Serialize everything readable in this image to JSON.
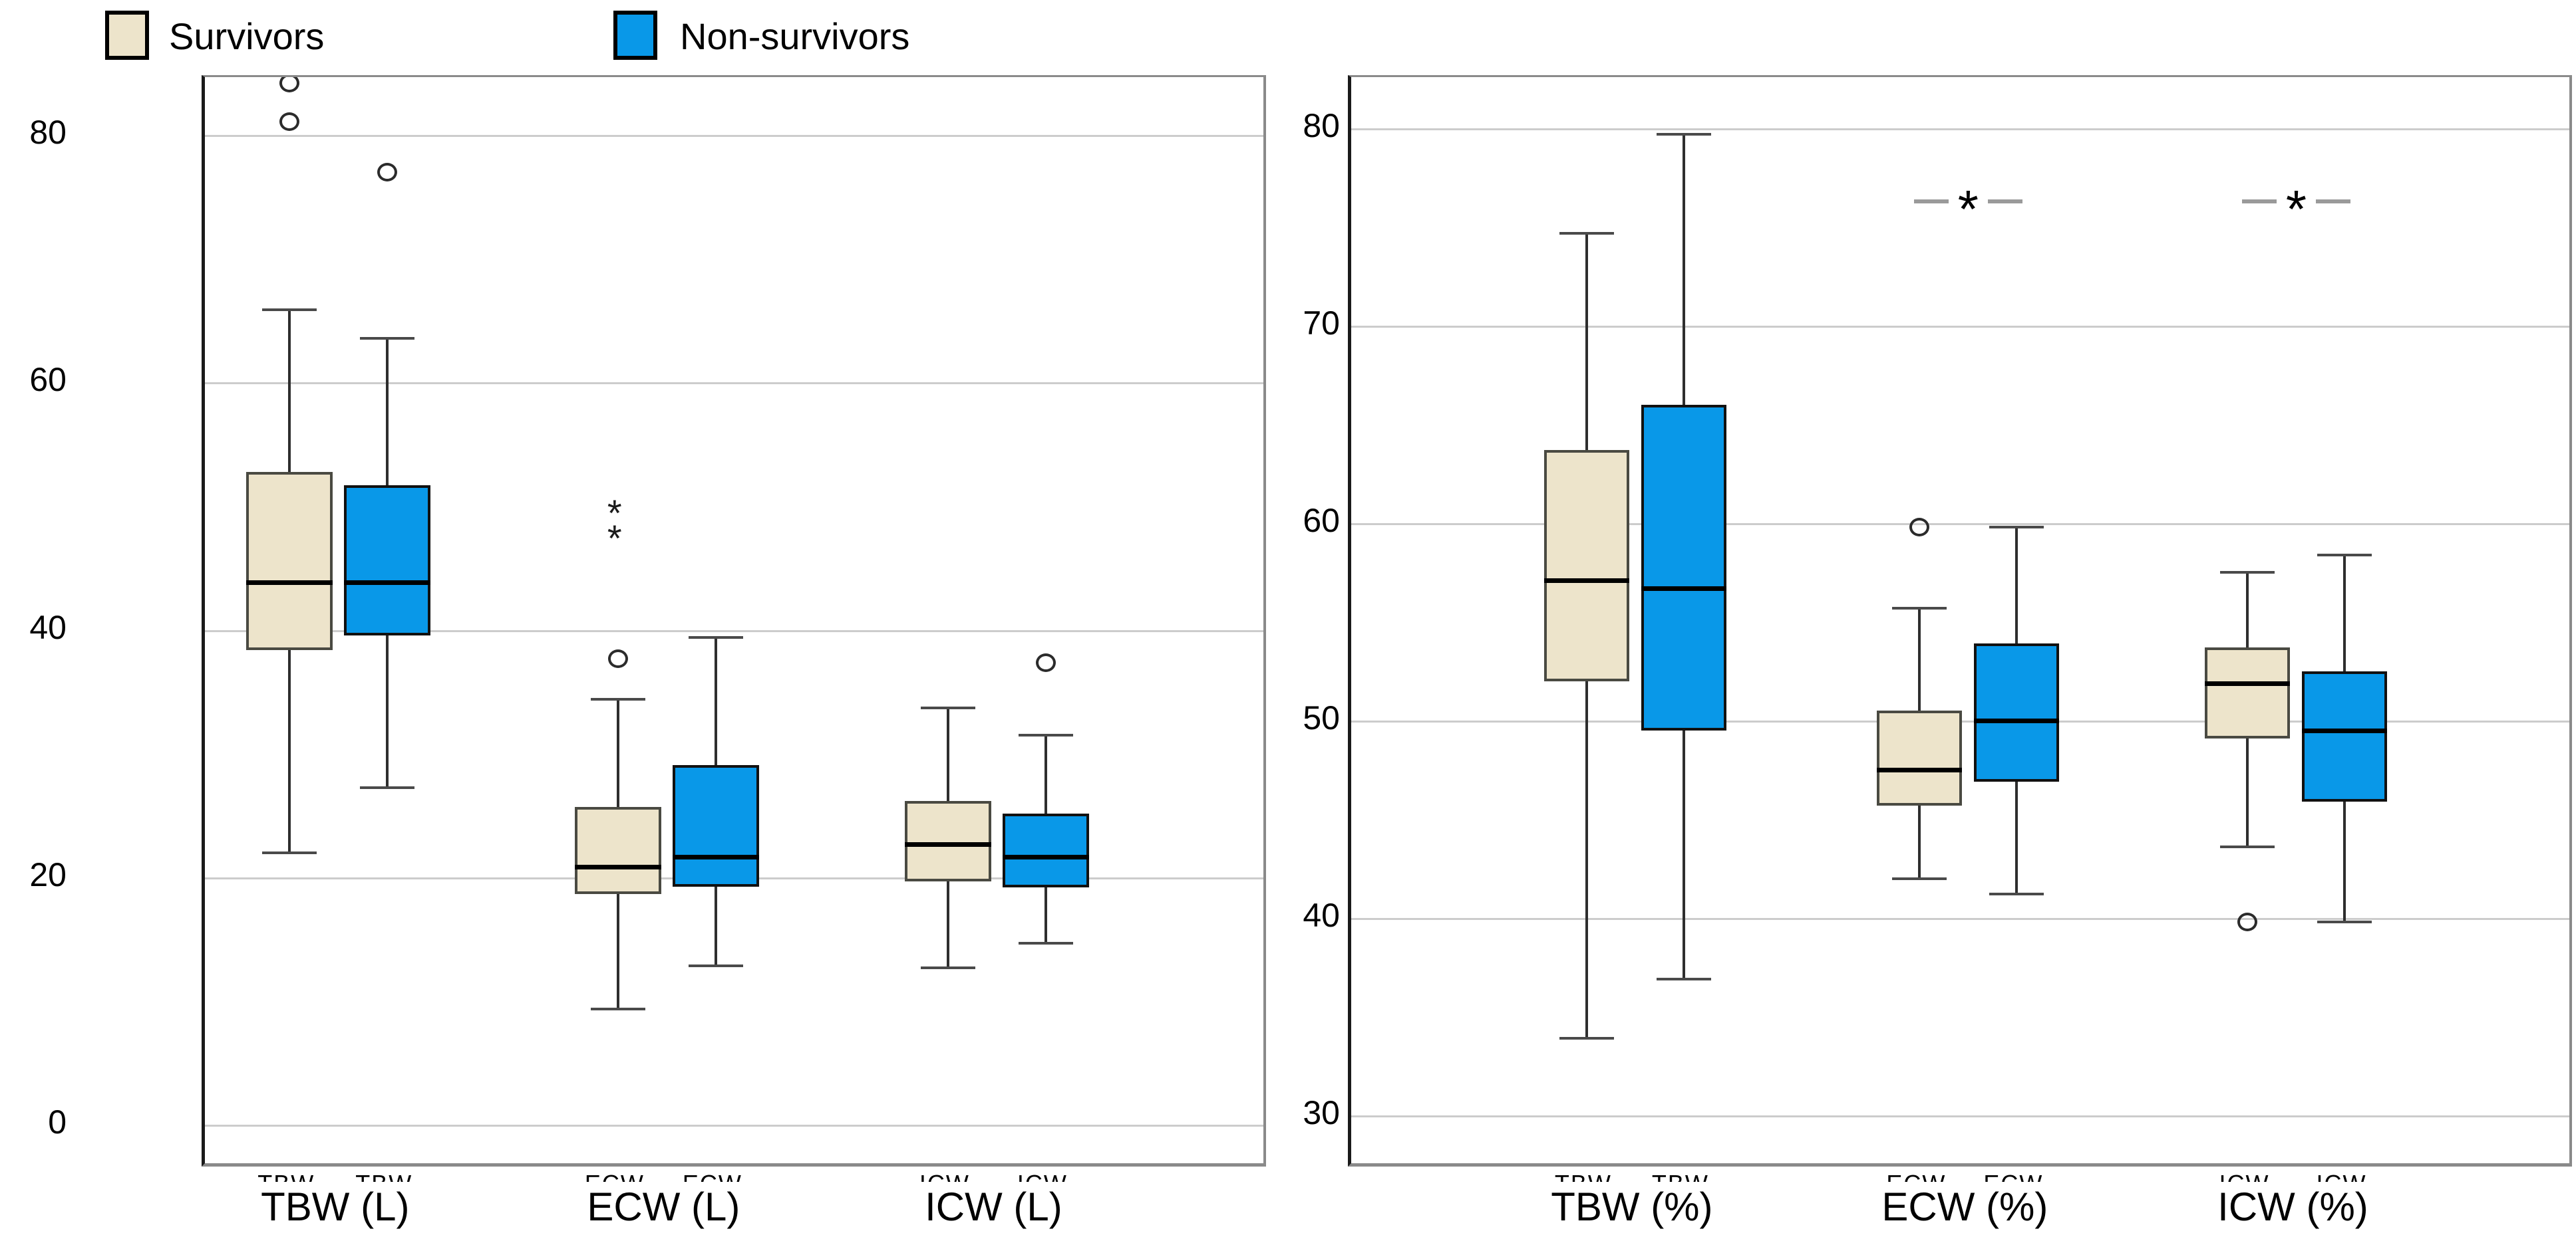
{
  "legend": {
    "items": [
      {
        "label": "Survivors",
        "color": "#EDE4CB",
        "border": "#000000"
      },
      {
        "label": "Non-survivors",
        "color": "#0998E8",
        "border": "#000000"
      }
    ]
  },
  "colors": {
    "survivor_fill": "#EDE4CB",
    "survivor_border": "#4a4a42",
    "nonsurvivor_fill": "#0998E8",
    "nonsurvivor_border": "#111111",
    "gridline": "#cccccc",
    "median": "#000000",
    "panel_border": "#8a8a8a",
    "axis": "#1a1a1a",
    "sig_dash": "#9a9a9a"
  },
  "chart_data": [
    {
      "type": "box",
      "panel": "left",
      "title": "",
      "xlabel": "",
      "ylabel": "",
      "ylim": [
        -3.2,
        85.0
      ],
      "yticks": [
        0,
        20,
        40,
        60,
        80
      ],
      "grid": true,
      "legend_position": "top-left",
      "categories": [
        "TBW (L)",
        "ECW (L)",
        "ICW (L)"
      ],
      "tick_stubs": [
        [
          "TBW",
          "TBW"
        ],
        [
          "ECW",
          "ECW"
        ],
        [
          "ICW",
          "ICW"
        ]
      ],
      "series": [
        {
          "name": "Survivors",
          "boxes": [
            {
              "low": 22.3,
              "q1": 38.7,
              "median": 44.2,
              "q3": 53.1,
              "high": 66.2,
              "outliers": [
                81.4,
                84.5
              ],
              "extremes": []
            },
            {
              "low": 9.7,
              "q1": 19.0,
              "median": 21.2,
              "q3": 26.0,
              "high": 34.7,
              "outliers": [
                38.0
              ],
              "extremes": [
                48.6,
                50.6
              ]
            },
            {
              "low": 13.0,
              "q1": 20.0,
              "median": 23.0,
              "q3": 26.5,
              "high": 34.0,
              "outliers": [],
              "extremes": []
            }
          ]
        },
        {
          "name": "Non-survivors",
          "boxes": [
            {
              "low": 27.6,
              "q1": 39.9,
              "median": 44.2,
              "q3": 52.0,
              "high": 63.9,
              "outliers": [
                77.3
              ],
              "extremes": []
            },
            {
              "low": 13.2,
              "q1": 19.6,
              "median": 22.0,
              "q3": 29.4,
              "high": 39.7,
              "outliers": [],
              "extremes": []
            },
            {
              "low": 15.0,
              "q1": 19.5,
              "median": 22.0,
              "q3": 25.5,
              "high": 31.8,
              "outliers": [
                37.7
              ],
              "extremes": []
            }
          ]
        }
      ],
      "sig_markers": []
    },
    {
      "type": "box",
      "panel": "right",
      "title": "",
      "xlabel": "",
      "ylabel": "",
      "ylim": [
        27.5,
        82.8
      ],
      "yticks": [
        30,
        40,
        50,
        60,
        70,
        80
      ],
      "grid": true,
      "categories": [
        "TBW (%)",
        "ECW (%)",
        "ICW (%)"
      ],
      "tick_stubs": [
        [
          "TBW",
          "TBW"
        ],
        [
          "ECW",
          "ECW"
        ],
        [
          "ICW",
          "ICW"
        ]
      ],
      "series": [
        {
          "name": "Survivors",
          "boxes": [
            {
              "low": 34.1,
              "q1": 52.2,
              "median": 57.3,
              "q3": 63.9,
              "high": 74.9,
              "outliers": [],
              "extremes": []
            },
            {
              "low": 42.2,
              "q1": 45.9,
              "median": 47.7,
              "q3": 50.7,
              "high": 55.9,
              "outliers": [
                60.0
              ],
              "extremes": []
            },
            {
              "low": 43.8,
              "q1": 49.3,
              "median": 52.1,
              "q3": 53.9,
              "high": 57.7,
              "outliers": [
                40.0
              ],
              "extremes": []
            }
          ]
        },
        {
          "name": "Non-survivors",
          "boxes": [
            {
              "low": 37.1,
              "q1": 49.7,
              "median": 56.9,
              "q3": 66.2,
              "high": 79.9,
              "outliers": [],
              "extremes": []
            },
            {
              "low": 41.4,
              "q1": 47.1,
              "median": 50.2,
              "q3": 54.1,
              "high": 60.0,
              "outliers": [],
              "extremes": []
            },
            {
              "low": 40.0,
              "q1": 46.1,
              "median": 49.7,
              "q3": 52.7,
              "high": 58.6,
              "outliers": [],
              "extremes": []
            }
          ]
        }
      ],
      "sig_markers": [
        {
          "category_index": 1,
          "value": 76.5,
          "symbol": "*"
        },
        {
          "category_index": 2,
          "value": 76.5,
          "symbol": "*"
        }
      ]
    }
  ]
}
